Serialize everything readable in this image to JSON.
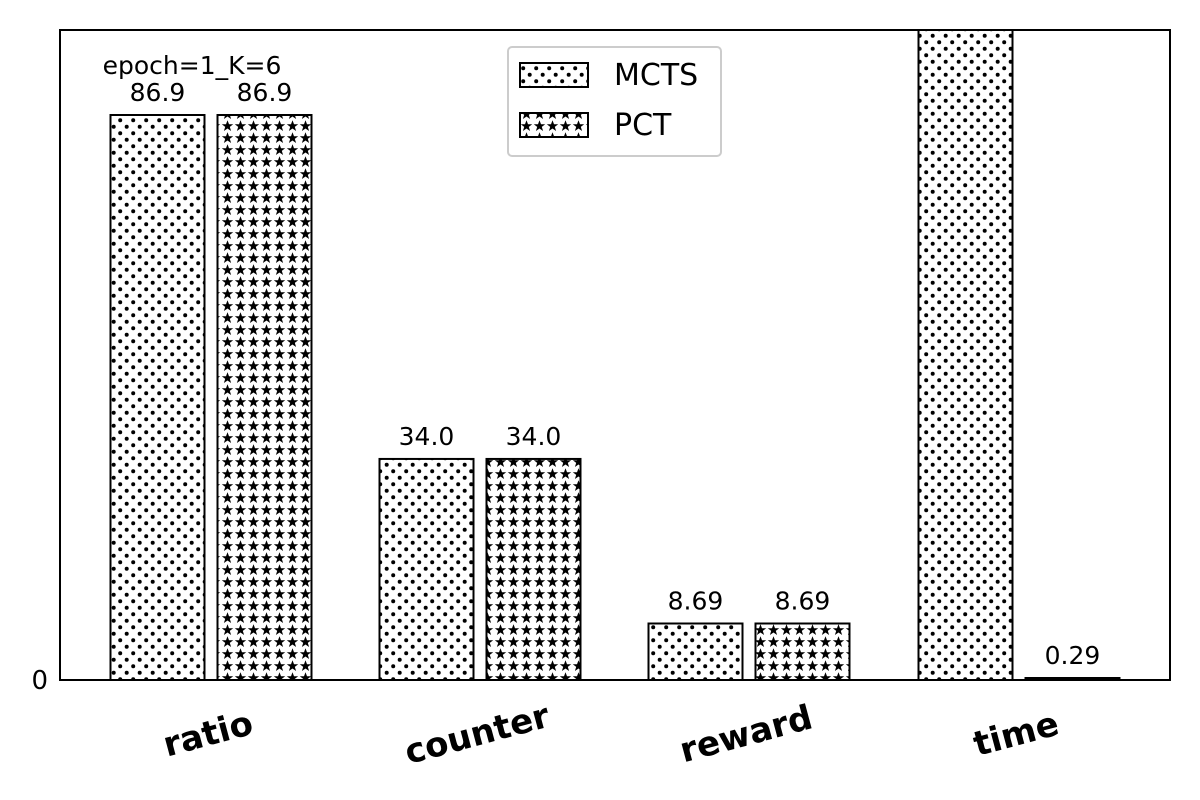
{
  "chart_data": {
    "type": "bar",
    "title": "",
    "xlabel": "",
    "ylabel": "",
    "categories": [
      "ratio",
      "counter",
      "reward",
      "time"
    ],
    "series": [
      {
        "name": "MCTS",
        "pattern": "dots",
        "values": [
          86.9,
          34.0,
          8.69,
          null
        ],
        "labels": [
          "86.9",
          "34.0",
          "8.69",
          ""
        ]
      },
      {
        "name": "PCT",
        "pattern": "stars",
        "values": [
          86.9,
          34.0,
          8.69,
          0.29
        ],
        "labels": [
          "86.9",
          "34.0",
          "8.69",
          "0.29"
        ]
      }
    ],
    "note": "MCTS time bar extends beyond the top of the visible axis range",
    "yticks": [
      "0"
    ],
    "ylim": [
      0,
      100
    ],
    "annotation": "epoch=1_K=6",
    "legend_position": "top-center",
    "grid": false,
    "colors": {
      "edge": "#000000",
      "fill": "#ffffff"
    }
  }
}
